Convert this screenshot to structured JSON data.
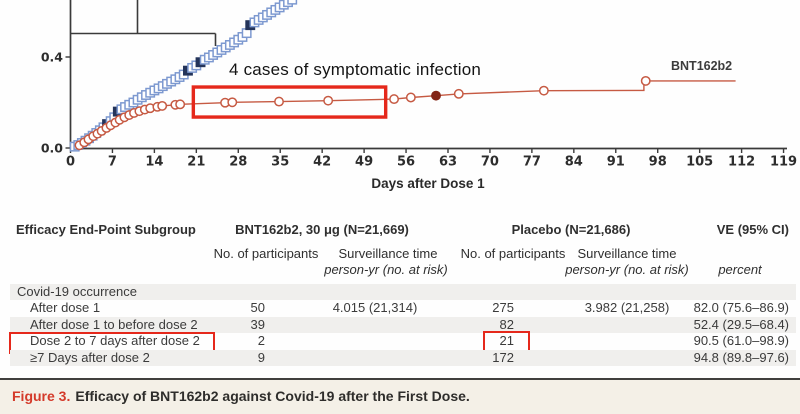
{
  "colors": {
    "highlight_red": "#e5281b",
    "caption_label_red": "#d43a2a",
    "caption_bg": "#f4f0e7",
    "placebo_blue": "#7d99d0",
    "placebo_filled": "#24345a",
    "vaccine_red": "#c65a43",
    "vaccine_filled": "#822517",
    "axis": "#3a3a3a",
    "row_shade": "#f0efed"
  },
  "chart_data": {
    "type": "line",
    "title": "",
    "xlabel": "Days after Dose 1",
    "ylabel": "",
    "end_label": "BNT162b2",
    "x_ticks": [
      0,
      7,
      14,
      21,
      28,
      35,
      42,
      49,
      56,
      63,
      70,
      77,
      84,
      91,
      98,
      105,
      112,
      119
    ],
    "y_ticks": [
      0.0,
      0.4
    ],
    "xlim": [
      0,
      119
    ],
    "ylim_visible": [
      0,
      0.65
    ],
    "grid": false,
    "annotation": {
      "text": "4 cases of symptomatic infection",
      "x_days": [
        20.5,
        52.6
      ],
      "values": [
        0.136,
        0.268
      ]
    },
    "series": [
      {
        "name": "Placebo",
        "marker": "open-square",
        "color": "#7d99d0",
        "filled_color": "#24345a",
        "points": [
          [
            0.7,
            0.006
          ],
          [
            1.3,
            0.013
          ],
          [
            1.9,
            0.022
          ],
          [
            2.5,
            0.032
          ],
          [
            3.1,
            0.043
          ],
          [
            3.7,
            0.054
          ],
          [
            4.3,
            0.066
          ],
          [
            4.9,
            0.078
          ],
          [
            5.5,
            0.091
          ],
          [
            6.1,
            0.105,
            1
          ],
          [
            6.7,
            0.118
          ],
          [
            7.3,
            0.135
          ],
          [
            7.9,
            0.16,
            1
          ],
          [
            8.5,
            0.17
          ],
          [
            9.1,
            0.18
          ],
          [
            9.8,
            0.19
          ],
          [
            10.5,
            0.2
          ],
          [
            11.2,
            0.212
          ],
          [
            11.9,
            0.223
          ],
          [
            12.6,
            0.233
          ],
          [
            13.3,
            0.243
          ],
          [
            14.0,
            0.253
          ],
          [
            14.7,
            0.262
          ],
          [
            15.4,
            0.272
          ],
          [
            16.1,
            0.282
          ],
          [
            16.8,
            0.292
          ],
          [
            17.5,
            0.302
          ],
          [
            18.2,
            0.312
          ],
          [
            18.9,
            0.323
          ],
          [
            19.6,
            0.34,
            1
          ],
          [
            20.3,
            0.352
          ],
          [
            21.0,
            0.363
          ],
          [
            21.7,
            0.377,
            1
          ],
          [
            22.4,
            0.388
          ],
          [
            23.1,
            0.398
          ],
          [
            23.8,
            0.409
          ],
          [
            24.5,
            0.42
          ],
          [
            25.2,
            0.431
          ],
          [
            25.9,
            0.442
          ],
          [
            26.6,
            0.453
          ],
          [
            27.3,
            0.464
          ],
          [
            28.0,
            0.476
          ],
          [
            28.7,
            0.488
          ],
          [
            29.4,
            0.505
          ],
          [
            30.0,
            0.54,
            1
          ],
          [
            30.7,
            0.552
          ],
          [
            31.4,
            0.563
          ],
          [
            32.1,
            0.574
          ],
          [
            32.8,
            0.585
          ],
          [
            33.5,
            0.596
          ],
          [
            34.2,
            0.607
          ],
          [
            34.9,
            0.618
          ],
          [
            35.6,
            0.63
          ],
          [
            36.3,
            0.641
          ],
          [
            37.0,
            0.652
          ]
        ]
      },
      {
        "name": "BNT162b2",
        "marker": "open-circle",
        "color": "#c65a43",
        "filled_color": "#822517",
        "points": [
          [
            1.5,
            0.012
          ],
          [
            2.3,
            0.025
          ],
          [
            3.0,
            0.038
          ],
          [
            3.8,
            0.052
          ],
          [
            4.5,
            0.063
          ],
          [
            5.2,
            0.075
          ],
          [
            6.0,
            0.088
          ],
          [
            6.7,
            0.1
          ],
          [
            7.5,
            0.112
          ],
          [
            8.2,
            0.124
          ],
          [
            9.0,
            0.135
          ],
          [
            9.8,
            0.145
          ],
          [
            10.6,
            0.154
          ],
          [
            11.5,
            0.162
          ],
          [
            12.4,
            0.169
          ],
          [
            13.3,
            0.175
          ],
          [
            14.5,
            0.181
          ],
          [
            15.3,
            0.185
          ],
          [
            17.5,
            0.19
          ],
          [
            18.3,
            0.192
          ],
          [
            25.8,
            0.199
          ],
          [
            27.0,
            0.201
          ],
          [
            34.8,
            0.204
          ],
          [
            43.0,
            0.208
          ],
          [
            54.0,
            0.215
          ],
          [
            56.8,
            0.222
          ],
          [
            61.0,
            0.23,
            1
          ],
          [
            64.8,
            0.238
          ],
          [
            79.0,
            0.252
          ],
          [
            96.0,
            0.295
          ]
        ],
        "line": [
          [
            0,
            0.0
          ],
          [
            1.5,
            0.012
          ],
          [
            2.3,
            0.025
          ],
          [
            3.0,
            0.038
          ],
          [
            3.8,
            0.052
          ],
          [
            4.5,
            0.063
          ],
          [
            5.2,
            0.075
          ],
          [
            6.0,
            0.088
          ],
          [
            6.7,
            0.1
          ],
          [
            7.5,
            0.112
          ],
          [
            8.2,
            0.124
          ],
          [
            9.0,
            0.135
          ],
          [
            9.8,
            0.145
          ],
          [
            10.6,
            0.154
          ],
          [
            11.5,
            0.162
          ],
          [
            12.4,
            0.169
          ],
          [
            13.3,
            0.175
          ],
          [
            14.5,
            0.181
          ],
          [
            15.3,
            0.185
          ],
          [
            17.5,
            0.19
          ],
          [
            18.3,
            0.192
          ],
          [
            25.8,
            0.199
          ],
          [
            27.0,
            0.201
          ],
          [
            34.8,
            0.204
          ],
          [
            43.0,
            0.208
          ],
          [
            54.0,
            0.215
          ],
          [
            56.8,
            0.222
          ],
          [
            61.0,
            0.23
          ],
          [
            64.8,
            0.238
          ],
          [
            79.0,
            0.252
          ],
          [
            95.7,
            0.253
          ],
          [
            95.7,
            0.295
          ],
          [
            111.0,
            0.295
          ]
        ]
      }
    ]
  },
  "table": {
    "title": "Efficacy End-Point Subgroup",
    "group_vaccine": "BNT162b2, 30 μg (N=21,669)",
    "group_placebo": "Placebo (N=21,686)",
    "ve_header": "VE (95% CI)",
    "sub_participants": "No. of participants",
    "sub_surveillance": "Surveillance time",
    "sub_personyr": "person-yr (no. at risk)",
    "sub_percent": "percent",
    "section": "Covid-19 occurrence",
    "rows": [
      {
        "label": "After dose 1",
        "vax_n": "50",
        "vax_surv": "4.015 (21,314)",
        "pla_n": "275",
        "pla_surv": "3.982 (21,258)",
        "ve": "82.0 (75.6–86.9)",
        "highlight_label": false,
        "highlight_pla": false
      },
      {
        "label": "After dose 1 to before dose 2",
        "vax_n": "39",
        "vax_surv": "",
        "pla_n": "82",
        "pla_surv": "",
        "ve": "52.4 (29.5–68.4)",
        "highlight_label": false,
        "highlight_pla": false
      },
      {
        "label": "Dose 2 to 7 days after dose 2",
        "vax_n": "2",
        "vax_surv": "",
        "pla_n": "21",
        "pla_surv": "",
        "ve": "90.5 (61.0–98.9)",
        "highlight_label": true,
        "highlight_pla": true
      },
      {
        "label": "≥7 Days after dose 2",
        "vax_n": "9",
        "vax_surv": "",
        "pla_n": "172",
        "pla_surv": "",
        "ve": "94.8 (89.8–97.6)",
        "highlight_label": false,
        "highlight_pla": false
      }
    ]
  },
  "figure": {
    "caption_label": "Figure 3.",
    "caption_text": "Efficacy of BNT162b2 against Covid-19 after the First Dose."
  }
}
